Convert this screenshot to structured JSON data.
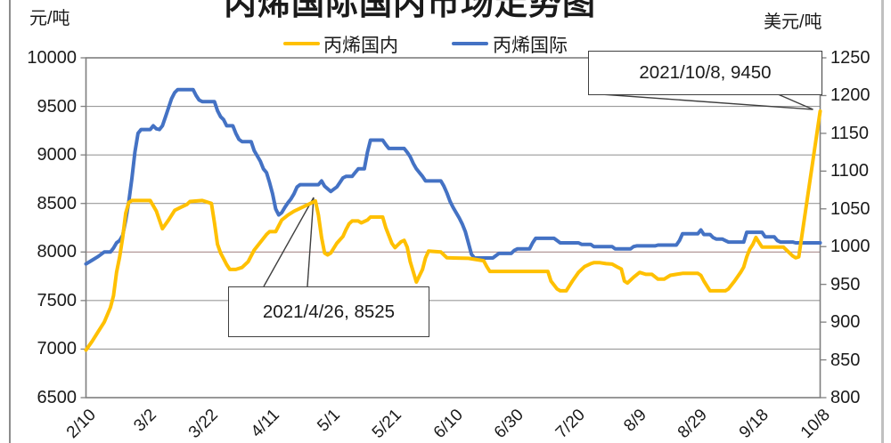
{
  "title": "丙烯国际国内市场走势图",
  "axis_units": {
    "left": "元/吨",
    "right": "美元/吨"
  },
  "legend": [
    {
      "label": "丙烯国内",
      "color": "#FFC000"
    },
    {
      "label": "丙烯国际",
      "color": "#4472C4"
    }
  ],
  "annotations": [
    {
      "text": "2021/10/8, 9450",
      "anchor_day": 240,
      "anchor_value": 9450,
      "axis": "left"
    },
    {
      "text": "2021/4/26, 8525",
      "anchor_day": 75,
      "anchor_value": 8525,
      "axis": "left"
    }
  ],
  "colors": {
    "domestic_line": "#FFC000",
    "international_line": "#4472C4",
    "gridline": "#9a9a9a",
    "highlight_gridline": "#a98c8c",
    "plot_border": "#7f7f7f",
    "callout_border": "#3f3f3f"
  },
  "chart_data": {
    "type": "line",
    "title": "丙烯国际国内市场走势图",
    "legend_position": "top",
    "grid": "horizontal",
    "x_tick_labels": [
      "2/10",
      "3/2",
      "3/22",
      "4/11",
      "5/1",
      "5/21",
      "6/10",
      "6/30",
      "7/20",
      "8/9",
      "8/29",
      "9/18",
      "10/8"
    ],
    "x_tick_days": [
      0,
      20,
      40,
      60,
      80,
      100,
      120,
      140,
      160,
      180,
      200,
      220,
      240
    ],
    "left_axis": {
      "label": "元/吨",
      "min": 6500,
      "max": 10000,
      "step": 500,
      "ticks": [
        "10000",
        "9500",
        "9000",
        "8500",
        "8000",
        "7500",
        "7000",
        "6500"
      ],
      "highlight_value": 8000
    },
    "right_axis": {
      "label": "美元/吨",
      "min": 800,
      "max": 1250,
      "step": 50,
      "ticks": [
        "1250",
        "1200",
        "1150",
        "1100",
        "1050",
        "1000",
        "950",
        "900",
        "850",
        "800"
      ]
    },
    "series": [
      {
        "name": "丙烯国内",
        "axis": "left",
        "color": "#FFC000",
        "points": [
          [
            0,
            6990
          ],
          [
            2,
            7080
          ],
          [
            4,
            7180
          ],
          [
            6,
            7280
          ],
          [
            8,
            7430
          ],
          [
            9,
            7550
          ],
          [
            10,
            7790
          ],
          [
            11,
            7950
          ],
          [
            12,
            8150
          ],
          [
            13,
            8400
          ],
          [
            14,
            8510
          ],
          [
            15,
            8530
          ],
          [
            21,
            8530
          ],
          [
            23,
            8420
          ],
          [
            25,
            8240
          ],
          [
            27,
            8330
          ],
          [
            29,
            8430
          ],
          [
            31,
            8460
          ],
          [
            33,
            8490
          ],
          [
            34,
            8520
          ],
          [
            38,
            8530
          ],
          [
            41,
            8500
          ],
          [
            42,
            8300
          ],
          [
            43,
            8080
          ],
          [
            44,
            7990
          ],
          [
            45,
            7930
          ],
          [
            46,
            7870
          ],
          [
            47,
            7820
          ],
          [
            49,
            7820
          ],
          [
            51,
            7840
          ],
          [
            53,
            7900
          ],
          [
            55,
            8020
          ],
          [
            57,
            8100
          ],
          [
            59,
            8180
          ],
          [
            60,
            8210
          ],
          [
            62,
            8210
          ],
          [
            64,
            8330
          ],
          [
            66,
            8380
          ],
          [
            68,
            8420
          ],
          [
            70,
            8450
          ],
          [
            72,
            8480
          ],
          [
            74,
            8510
          ],
          [
            75,
            8525
          ],
          [
            76,
            8380
          ],
          [
            77,
            8150
          ],
          [
            78,
            7990
          ],
          [
            79,
            7970
          ],
          [
            80,
            7990
          ],
          [
            82,
            8090
          ],
          [
            84,
            8160
          ],
          [
            85,
            8230
          ],
          [
            86,
            8290
          ],
          [
            87,
            8320
          ],
          [
            89,
            8320
          ],
          [
            90,
            8300
          ],
          [
            92,
            8330
          ],
          [
            93,
            8360
          ],
          [
            97,
            8360
          ],
          [
            98,
            8250
          ],
          [
            100,
            8090
          ],
          [
            101,
            8045
          ],
          [
            103,
            8105
          ],
          [
            104,
            8120
          ],
          [
            105,
            8050
          ],
          [
            106,
            7900
          ],
          [
            108,
            7690
          ],
          [
            110,
            7820
          ],
          [
            111,
            7940
          ],
          [
            112,
            8010
          ],
          [
            116,
            8000
          ],
          [
            118,
            7940
          ],
          [
            125,
            7935
          ],
          [
            130,
            7910
          ],
          [
            131,
            7850
          ],
          [
            132,
            7800
          ],
          [
            151,
            7800
          ],
          [
            152,
            7700
          ],
          [
            154,
            7620
          ],
          [
            155,
            7600
          ],
          [
            157,
            7600
          ],
          [
            159,
            7700
          ],
          [
            161,
            7790
          ],
          [
            163,
            7850
          ],
          [
            165,
            7880
          ],
          [
            166,
            7890
          ],
          [
            168,
            7890
          ],
          [
            170,
            7880
          ],
          [
            172,
            7875
          ],
          [
            174,
            7840
          ],
          [
            175,
            7825
          ],
          [
            176,
            7700
          ],
          [
            177,
            7680
          ],
          [
            179,
            7740
          ],
          [
            181,
            7790
          ],
          [
            183,
            7770
          ],
          [
            185,
            7770
          ],
          [
            187,
            7720
          ],
          [
            189,
            7720
          ],
          [
            191,
            7760
          ],
          [
            193,
            7770
          ],
          [
            195,
            7780
          ],
          [
            200,
            7780
          ],
          [
            201,
            7760
          ],
          [
            202,
            7700
          ],
          [
            204,
            7600
          ],
          [
            209,
            7600
          ],
          [
            210,
            7620
          ],
          [
            212,
            7700
          ],
          [
            214,
            7790
          ],
          [
            215,
            7845
          ],
          [
            216,
            7950
          ],
          [
            217,
            8030
          ],
          [
            218,
            8080
          ],
          [
            219,
            8150
          ],
          [
            220,
            8100
          ],
          [
            221,
            8050
          ],
          [
            228,
            8050
          ],
          [
            229,
            8020
          ],
          [
            231,
            7960
          ],
          [
            232,
            7940
          ],
          [
            233,
            7950
          ],
          [
            240,
            9450
          ]
        ]
      },
      {
        "name": "丙烯国际",
        "axis": "right",
        "color": "#4472C4",
        "points": [
          [
            0,
            977
          ],
          [
            2,
            982
          ],
          [
            4,
            987
          ],
          [
            6,
            993
          ],
          [
            8,
            993
          ],
          [
            9,
            998
          ],
          [
            10,
            1005
          ],
          [
            11,
            1008
          ],
          [
            12,
            1015
          ],
          [
            13,
            1035
          ],
          [
            14,
            1060
          ],
          [
            15,
            1090
          ],
          [
            16,
            1125
          ],
          [
            17,
            1150
          ],
          [
            18,
            1155
          ],
          [
            21,
            1155
          ],
          [
            22,
            1160
          ],
          [
            23,
            1156
          ],
          [
            24,
            1155
          ],
          [
            25,
            1160
          ],
          [
            26,
            1172
          ],
          [
            27,
            1184
          ],
          [
            28,
            1196
          ],
          [
            29,
            1204
          ],
          [
            30,
            1208
          ],
          [
            35,
            1208
          ],
          [
            36,
            1200
          ],
          [
            37,
            1194
          ],
          [
            38,
            1192
          ],
          [
            42,
            1192
          ],
          [
            43,
            1180
          ],
          [
            44,
            1172
          ],
          [
            45,
            1168
          ],
          [
            46,
            1160
          ],
          [
            48,
            1160
          ],
          [
            49,
            1150
          ],
          [
            50,
            1142
          ],
          [
            51,
            1139
          ],
          [
            54,
            1139
          ],
          [
            55,
            1127
          ],
          [
            56,
            1120
          ],
          [
            57,
            1113
          ],
          [
            58,
            1103
          ],
          [
            59,
            1098
          ],
          [
            60,
            1085
          ],
          [
            61,
            1070
          ],
          [
            62,
            1050
          ],
          [
            63,
            1042
          ],
          [
            64,
            1045
          ],
          [
            65,
            1052
          ],
          [
            66,
            1058
          ],
          [
            67,
            1063
          ],
          [
            68,
            1070
          ],
          [
            69,
            1079
          ],
          [
            70,
            1082
          ],
          [
            76,
            1082
          ],
          [
            77,
            1087
          ],
          [
            78,
            1080
          ],
          [
            80,
            1073
          ],
          [
            81,
            1076
          ],
          [
            82,
            1079
          ],
          [
            83,
            1085
          ],
          [
            84,
            1091
          ],
          [
            85,
            1093
          ],
          [
            87,
            1093
          ],
          [
            88,
            1098
          ],
          [
            89,
            1103
          ],
          [
            91,
            1103
          ],
          [
            92,
            1125
          ],
          [
            93,
            1141
          ],
          [
            97,
            1141
          ],
          [
            98,
            1135
          ],
          [
            99,
            1130
          ],
          [
            104,
            1130
          ],
          [
            105,
            1125
          ],
          [
            106,
            1119
          ],
          [
            107,
            1110
          ],
          [
            108,
            1103
          ],
          [
            109,
            1098
          ],
          [
            110,
            1093
          ],
          [
            111,
            1087
          ],
          [
            116,
            1087
          ],
          [
            117,
            1080
          ],
          [
            118,
            1071
          ],
          [
            119,
            1060
          ],
          [
            120,
            1052
          ],
          [
            121,
            1045
          ],
          [
            122,
            1038
          ],
          [
            123,
            1030
          ],
          [
            124,
            1020
          ],
          [
            125,
            1005
          ],
          [
            126,
            990
          ],
          [
            127,
            985
          ],
          [
            133,
            985
          ],
          [
            134,
            988
          ],
          [
            135,
            991
          ],
          [
            139,
            991
          ],
          [
            140,
            995
          ],
          [
            141,
            997
          ],
          [
            145,
            997
          ],
          [
            146,
            1005
          ],
          [
            147,
            1011
          ],
          [
            153,
            1011
          ],
          [
            154,
            1008
          ],
          [
            155,
            1005
          ],
          [
            161,
            1005
          ],
          [
            162,
            1003
          ],
          [
            165,
            1003
          ],
          [
            166,
            1000
          ],
          [
            172,
            1000
          ],
          [
            173,
            997
          ],
          [
            178,
            997
          ],
          [
            179,
            1000
          ],
          [
            180,
            1001
          ],
          [
            186,
            1001
          ],
          [
            187,
            1002
          ],
          [
            193,
            1002
          ],
          [
            194,
            1008
          ],
          [
            195,
            1017
          ],
          [
            200,
            1017
          ],
          [
            201,
            1022
          ],
          [
            202,
            1016
          ],
          [
            204,
            1016
          ],
          [
            205,
            1012
          ],
          [
            206,
            1010
          ],
          [
            208,
            1010
          ],
          [
            209,
            1008
          ],
          [
            210,
            1006
          ],
          [
            215,
            1006
          ],
          [
            216,
            1019
          ],
          [
            221,
            1019
          ],
          [
            222,
            1013
          ],
          [
            225,
            1013
          ],
          [
            226,
            1008
          ],
          [
            227,
            1006
          ],
          [
            231,
            1006
          ],
          [
            232,
            1005
          ],
          [
            240,
            1005
          ]
        ]
      }
    ]
  }
}
